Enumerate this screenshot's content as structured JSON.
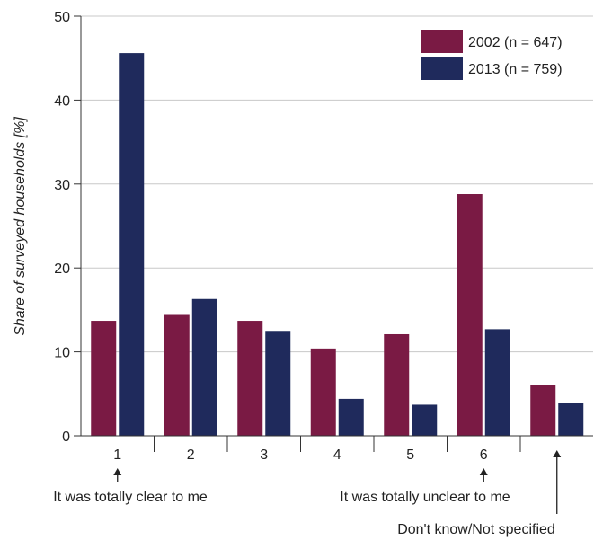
{
  "colors": {
    "series_2002": "#7a1a44",
    "series_2013": "#1f2a5c",
    "grid": "#c8c8c8",
    "axis": "#333333"
  },
  "chart_data": {
    "type": "bar",
    "categories": [
      "1",
      "2",
      "3",
      "4",
      "5",
      "6",
      ""
    ],
    "series": [
      {
        "name": "2002 (n = 647)",
        "values": [
          13.7,
          14.4,
          13.7,
          10.4,
          12.1,
          28.8,
          6.0
        ]
      },
      {
        "name": "2013 (n = 759)",
        "values": [
          45.6,
          16.3,
          12.5,
          4.4,
          3.7,
          12.7,
          3.9
        ]
      }
    ],
    "ylabel": "Share of surveyed households [%]",
    "xlabel": "",
    "ylim": [
      0,
      50
    ],
    "yticks": [
      0,
      10,
      20,
      30,
      40,
      50
    ],
    "grid": true,
    "legend_position": "top-right",
    "annotations": [
      {
        "text": "It was totally clear to me",
        "category_index": 0
      },
      {
        "text": "It was totally unclear to me",
        "category_index": 5
      },
      {
        "text": "Don't know/Not specified",
        "category_index": 6
      }
    ]
  }
}
